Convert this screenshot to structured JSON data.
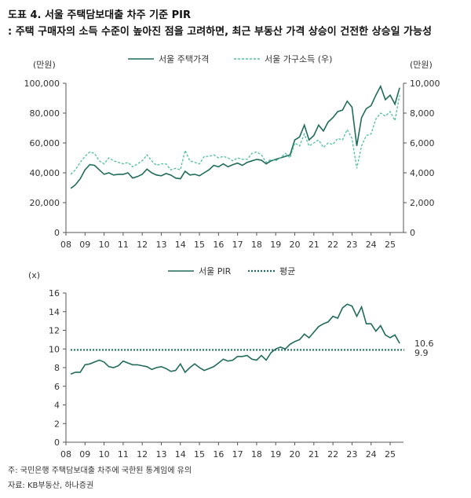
{
  "title_line1": "도표 4.  서울 주택담보대출 차주 기준 PIR",
  "title_line2": ": 주택 구매자의 소득 수준이 높아진 점을 고려하면, 최근 부동산 가격 상승이 건전한 상승일 가능성",
  "note": "주: 국민은행 주택담보대출 차주에 국한된 통계임에 유의",
  "source": "자료: KB부동산, 하나증권",
  "colors": {
    "primary": "#1f6b5c",
    "secondary": "#4dbfa0"
  },
  "chart_data": [
    {
      "type": "line",
      "legend_position": "top",
      "left_unit": "(만원)",
      "right_unit": "(만원)",
      "x_ticks": [
        "08",
        "09",
        "10",
        "11",
        "12",
        "13",
        "14",
        "15",
        "16",
        "17",
        "18",
        "19",
        "20",
        "21",
        "22",
        "23",
        "24",
        "25"
      ],
      "xlim": [
        2008.0,
        2025.7
      ],
      "ylim_left": [
        0,
        100000
      ],
      "ylim_right": [
        0,
        10000
      ],
      "y_ticks_left": [
        "0",
        "20,000",
        "40,000",
        "60,000",
        "80,000",
        "100,000"
      ],
      "y_ticks_right": [
        "0",
        "2,000",
        "4,000",
        "6,000",
        "8,000",
        "10,000"
      ],
      "x": [
        2008.25,
        2008.5,
        2008.75,
        2009.0,
        2009.25,
        2009.5,
        2009.75,
        2010.0,
        2010.25,
        2010.5,
        2010.75,
        2011.0,
        2011.25,
        2011.5,
        2011.75,
        2012.0,
        2012.25,
        2012.5,
        2012.75,
        2013.0,
        2013.25,
        2013.5,
        2013.75,
        2014.0,
        2014.25,
        2014.5,
        2014.75,
        2015.0,
        2015.25,
        2015.5,
        2015.75,
        2016.0,
        2016.25,
        2016.5,
        2016.75,
        2017.0,
        2017.25,
        2017.5,
        2017.75,
        2018.0,
        2018.25,
        2018.5,
        2018.75,
        2019.0,
        2019.25,
        2019.5,
        2019.75,
        2020.0,
        2020.25,
        2020.5,
        2020.75,
        2021.0,
        2021.25,
        2021.5,
        2021.75,
        2022.0,
        2022.25,
        2022.5,
        2022.75,
        2023.0,
        2023.25,
        2023.5,
        2023.75,
        2024.0,
        2024.25,
        2024.5,
        2024.75,
        2025.0,
        2025.25,
        2025.5
      ],
      "series": [
        {
          "name": "서울 주택가격",
          "axis": "left",
          "style": "solid",
          "values": [
            29500,
            32000,
            36000,
            42000,
            45500,
            45000,
            42000,
            39000,
            40000,
            38500,
            39000,
            39000,
            40000,
            36500,
            37500,
            39000,
            42500,
            40000,
            38500,
            38000,
            39500,
            38500,
            36500,
            36000,
            41000,
            38500,
            39000,
            38000,
            40000,
            42000,
            45000,
            44000,
            46000,
            44000,
            45500,
            46500,
            45000,
            47000,
            48000,
            49000,
            48500,
            46000,
            48000,
            49000,
            50000,
            51000,
            52000,
            62000,
            64000,
            72000,
            62000,
            65000,
            72000,
            68000,
            74000,
            77000,
            81000,
            82000,
            88000,
            84000,
            58000,
            77000,
            83000,
            85000,
            92000,
            98000,
            89000,
            92000,
            86000,
            97000
          ]
        },
        {
          "name": "서울 가구소득 (우)",
          "axis": "right",
          "style": "dashed",
          "values": [
            3900,
            4200,
            4700,
            5100,
            5400,
            5300,
            4800,
            4600,
            5000,
            4800,
            4700,
            4600,
            4700,
            4400,
            4600,
            4800,
            5200,
            4800,
            4500,
            4600,
            4600,
            4200,
            4300,
            4200,
            5500,
            4800,
            4700,
            4600,
            5100,
            5100,
            5200,
            5000,
            5100,
            5000,
            4800,
            5000,
            4900,
            4900,
            5300,
            5400,
            5200,
            4700,
            4900,
            4800,
            5000,
            5300,
            5000,
            6000,
            5800,
            6600,
            5800,
            6000,
            6200,
            5700,
            6000,
            5900,
            6300,
            6200,
            6900,
            6300,
            4300,
            5800,
            6500,
            6600,
            7600,
            8000,
            7800,
            8100,
            7500,
            9200
          ]
        }
      ]
    },
    {
      "type": "line",
      "legend_position": "top",
      "y_unit": "(x)",
      "x_ticks": [
        "08",
        "09",
        "10",
        "11",
        "12",
        "13",
        "14",
        "15",
        "16",
        "17",
        "18",
        "19",
        "20",
        "21",
        "22",
        "23",
        "24",
        "25"
      ],
      "xlim": [
        2008.0,
        2025.7
      ],
      "ylim": [
        0,
        16
      ],
      "y_ticks": [
        "0",
        "2",
        "4",
        "6",
        "8",
        "10",
        "12",
        "14",
        "16"
      ],
      "x": [
        2008.25,
        2008.5,
        2008.75,
        2009.0,
        2009.25,
        2009.5,
        2009.75,
        2010.0,
        2010.25,
        2010.5,
        2010.75,
        2011.0,
        2011.25,
        2011.5,
        2011.75,
        2012.0,
        2012.25,
        2012.5,
        2012.75,
        2013.0,
        2013.25,
        2013.5,
        2013.75,
        2014.0,
        2014.25,
        2014.5,
        2014.75,
        2015.0,
        2015.25,
        2015.5,
        2015.75,
        2016.0,
        2016.25,
        2016.5,
        2016.75,
        2017.0,
        2017.25,
        2017.5,
        2017.75,
        2018.0,
        2018.25,
        2018.5,
        2018.75,
        2019.0,
        2019.25,
        2019.5,
        2019.75,
        2020.0,
        2020.25,
        2020.5,
        2020.75,
        2021.0,
        2021.25,
        2021.5,
        2021.75,
        2022.0,
        2022.25,
        2022.5,
        2022.75,
        2023.0,
        2023.25,
        2023.5,
        2023.75,
        2024.0,
        2024.25,
        2024.5,
        2024.75,
        2025.0,
        2025.25,
        2025.5
      ],
      "series": [
        {
          "name": "서울 PIR",
          "style": "solid",
          "values": [
            7.3,
            7.5,
            7.5,
            8.3,
            8.4,
            8.6,
            8.8,
            8.6,
            8.1,
            8.0,
            8.2,
            8.7,
            8.5,
            8.3,
            8.3,
            8.2,
            8.1,
            7.8,
            8.0,
            8.1,
            7.9,
            7.6,
            7.7,
            8.4,
            7.5,
            8.0,
            8.4,
            8.0,
            7.7,
            7.9,
            8.1,
            8.5,
            8.9,
            8.7,
            8.8,
            9.2,
            9.2,
            9.3,
            8.9,
            8.8,
            9.3,
            8.8,
            9.6,
            10.0,
            10.2,
            10.0,
            10.5,
            10.8,
            11.0,
            11.6,
            11.2,
            11.8,
            12.4,
            12.7,
            12.9,
            13.5,
            13.3,
            14.4,
            14.8,
            14.6,
            13.5,
            14.5,
            12.7,
            12.7,
            11.9,
            12.5,
            11.5,
            11.2,
            11.5,
            10.6
          ]
        },
        {
          "name": "평균",
          "style": "dotted",
          "constant": 9.9
        }
      ],
      "end_labels": [
        "10.6",
        "9.9"
      ]
    }
  ]
}
